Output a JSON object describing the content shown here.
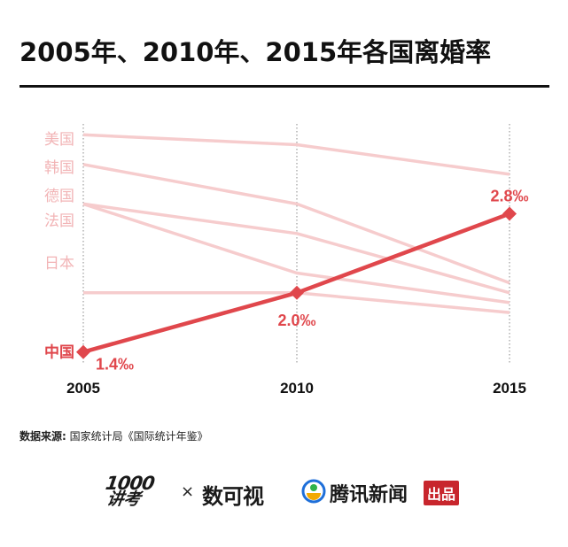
{
  "title": "2005年、2010年、2015年各国离婚率",
  "source": {
    "label": "数据来源:",
    "text": " 国家统计局《国际统计年鉴》"
  },
  "logos": {
    "left_line1": "1000",
    "left_line2": "讲考",
    "times": "×",
    "middle": "数可视",
    "right": "腾讯新闻",
    "right_badge": "出品"
  },
  "colors": {
    "highlight": "#e0474c",
    "other_lines": "#f6cccd",
    "other_labels": "#f2b4b6",
    "axis_text": "#111111"
  },
  "chart_data": {
    "type": "line",
    "x": [
      "2005",
      "2010",
      "2015"
    ],
    "series": [
      {
        "name": "美国",
        "values": [
          3.6,
          3.5,
          3.2
        ]
      },
      {
        "name": "韩国",
        "values": [
          3.3,
          2.9,
          2.1
        ]
      },
      {
        "name": "德国",
        "values": [
          2.9,
          2.6,
          2.0
        ]
      },
      {
        "name": "法国",
        "values": [
          2.9,
          2.2,
          1.9
        ]
      },
      {
        "name": "日本",
        "values": [
          2.0,
          2.0,
          1.8
        ]
      },
      {
        "name": "中国",
        "values": [
          1.4,
          2.0,
          2.8
        ],
        "highlight": true,
        "point_labels": [
          "1.4‰",
          "2.0‰",
          "2.8‰"
        ]
      }
    ],
    "ylim": [
      1.2,
      3.8
    ],
    "xlabel": "",
    "ylabel": "",
    "grid": "vertical dotted at each year"
  }
}
